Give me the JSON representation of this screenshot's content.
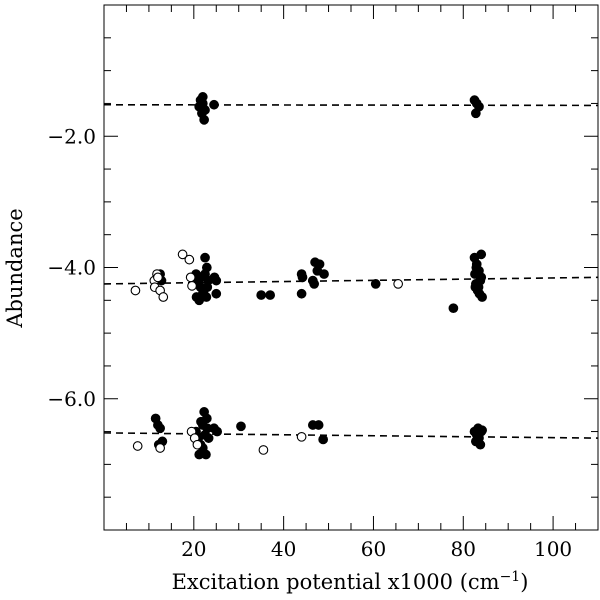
{
  "chart_data": {
    "type": "scatter",
    "title": "",
    "xlabel": "Excitation potential x1000 (cm",
    "xlabel_sup": "−1",
    "xlabel_close": ")",
    "ylabel": "Abundance",
    "xlim": [
      0,
      110
    ],
    "ylim": [
      -8.0,
      0.0
    ],
    "xticks": [
      20,
      40,
      60,
      80,
      100
    ],
    "xtick_labels": [
      "20",
      "40",
      "60",
      "80",
      "100"
    ],
    "yticks": [
      -2.0,
      -4.0,
      -6.0
    ],
    "ytick_labels": [
      "−2.0",
      "−4.0",
      "−6.0"
    ],
    "grid": false,
    "legend": "none",
    "series": [
      {
        "marker": "filled-circle",
        "points": [
          [
            21.5,
            -1.45
          ],
          [
            22.0,
            -1.4
          ],
          [
            21.2,
            -1.55
          ],
          [
            22.5,
            -1.6
          ],
          [
            21.8,
            -1.65
          ],
          [
            22.3,
            -1.75
          ],
          [
            24.5,
            -1.52
          ],
          [
            22.0,
            -1.5
          ],
          [
            82.5,
            -1.45
          ],
          [
            83.5,
            -1.55
          ],
          [
            82.8,
            -1.65
          ],
          [
            83.0,
            -1.5
          ],
          [
            12.5,
            -4.1
          ],
          [
            12.8,
            -4.2
          ],
          [
            20.5,
            -4.1
          ],
          [
            21.0,
            -4.2
          ],
          [
            21.5,
            -4.3
          ],
          [
            22.0,
            -4.4
          ],
          [
            22.5,
            -4.1
          ],
          [
            23.0,
            -4.3
          ],
          [
            21.2,
            -4.5
          ],
          [
            22.8,
            -4.45
          ],
          [
            22.5,
            -3.85
          ],
          [
            20.8,
            -4.25
          ],
          [
            21.6,
            -4.15
          ],
          [
            22.2,
            -4.35
          ],
          [
            23.2,
            -4.2
          ],
          [
            20.6,
            -4.45
          ],
          [
            22.9,
            -4.0
          ],
          [
            25.0,
            -4.2
          ],
          [
            25.0,
            -4.4
          ],
          [
            24.6,
            -4.15
          ],
          [
            35.0,
            -4.42
          ],
          [
            37.0,
            -4.42
          ],
          [
            44.0,
            -4.1
          ],
          [
            44.2,
            -4.15
          ],
          [
            44.0,
            -4.4
          ],
          [
            46.5,
            -4.2
          ],
          [
            46.8,
            -4.25
          ],
          [
            47.0,
            -3.92
          ],
          [
            48.0,
            -3.95
          ],
          [
            47.5,
            -4.05
          ],
          [
            49.0,
            -4.1
          ],
          [
            60.5,
            -4.25
          ],
          [
            77.8,
            -4.62
          ],
          [
            82.5,
            -3.85
          ],
          [
            83.0,
            -3.95
          ],
          [
            83.5,
            -4.05
          ],
          [
            84.0,
            -4.15
          ],
          [
            82.8,
            -4.25
          ],
          [
            83.2,
            -4.35
          ],
          [
            84.2,
            -4.45
          ],
          [
            82.6,
            -4.1
          ],
          [
            83.8,
            -4.2
          ],
          [
            84.0,
            -3.8
          ],
          [
            83.4,
            -4.3
          ],
          [
            82.9,
            -4.0
          ],
          [
            83.6,
            -4.4
          ],
          [
            82.7,
            -4.3
          ],
          [
            11.5,
            -6.3
          ],
          [
            12.0,
            -6.4
          ],
          [
            12.5,
            -6.45
          ],
          [
            12.2,
            -6.7
          ],
          [
            13.0,
            -6.65
          ],
          [
            20.5,
            -6.5
          ],
          [
            21.0,
            -6.6
          ],
          [
            21.5,
            -6.7
          ],
          [
            22.0,
            -6.4
          ],
          [
            22.5,
            -6.55
          ],
          [
            23.0,
            -6.45
          ],
          [
            21.2,
            -6.85
          ],
          [
            22.7,
            -6.85
          ],
          [
            22.3,
            -6.2
          ],
          [
            21.6,
            -6.35
          ],
          [
            22.0,
            -6.75
          ],
          [
            20.8,
            -6.65
          ],
          [
            22.9,
            -6.3
          ],
          [
            23.3,
            -6.6
          ],
          [
            24.5,
            -6.45
          ],
          [
            25.2,
            -6.5
          ],
          [
            30.5,
            -6.42
          ],
          [
            46.5,
            -6.4
          ],
          [
            47.8,
            -6.4
          ],
          [
            48.8,
            -6.62
          ],
          [
            82.5,
            -6.5
          ],
          [
            83.0,
            -6.55
          ],
          [
            83.5,
            -6.6
          ],
          [
            84.0,
            -6.5
          ],
          [
            82.8,
            -6.65
          ],
          [
            83.3,
            -6.45
          ],
          [
            83.8,
            -6.7
          ],
          [
            84.2,
            -6.48
          ]
        ]
      },
      {
        "marker": "open-circle",
        "points": [
          [
            7.0,
            -4.35
          ],
          [
            11.2,
            -4.2
          ],
          [
            11.8,
            -4.1
          ],
          [
            11.3,
            -4.3
          ],
          [
            12.5,
            -4.35
          ],
          [
            13.2,
            -4.45
          ],
          [
            12.0,
            -4.15
          ],
          [
            17.5,
            -3.8
          ],
          [
            19.0,
            -3.88
          ],
          [
            19.3,
            -4.15
          ],
          [
            19.6,
            -4.28
          ],
          [
            65.5,
            -4.25
          ],
          [
            7.5,
            -6.72
          ],
          [
            12.5,
            -6.75
          ],
          [
            19.5,
            -6.5
          ],
          [
            20.2,
            -6.6
          ],
          [
            20.8,
            -6.7
          ],
          [
            35.5,
            -6.78
          ],
          [
            44.0,
            -6.58
          ]
        ]
      }
    ],
    "fit_lines": [
      {
        "x": [
          0,
          110
        ],
        "y": [
          -1.52,
          -1.53
        ]
      },
      {
        "x": [
          0,
          110
        ],
        "y": [
          -4.25,
          -4.15
        ]
      },
      {
        "x": [
          0,
          110
        ],
        "y": [
          -6.52,
          -6.6
        ]
      }
    ]
  }
}
